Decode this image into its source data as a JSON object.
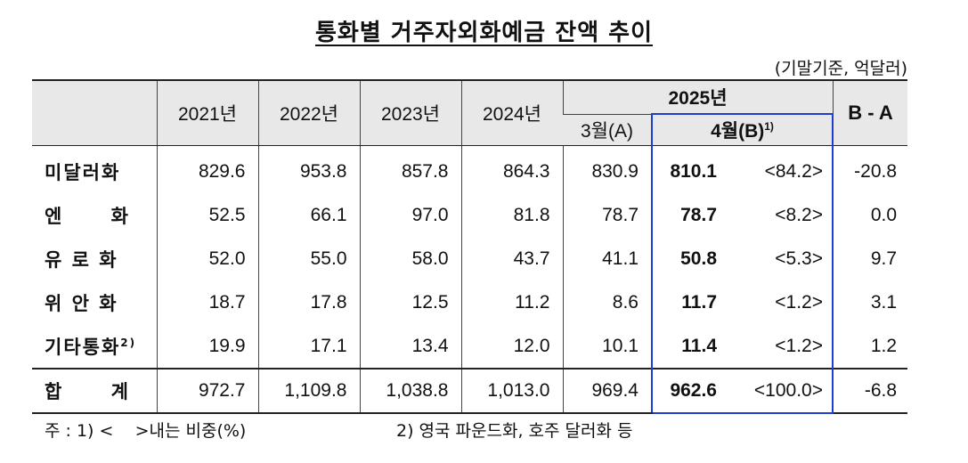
{
  "title": "통화별 거주자외화예금 잔액 추이",
  "unit": "(기말기준, 억달러)",
  "header": {
    "years": [
      "2021년",
      "2022년",
      "2023년",
      "2024년"
    ],
    "year_2025": "2025년",
    "march": "3월(A)",
    "april": "4월(B)",
    "april_sup": "1)",
    "ba": "B - A"
  },
  "rows": [
    {
      "label": "미달러화",
      "values": [
        "829.6",
        "953.8",
        "857.8",
        "864.3",
        "830.9"
      ],
      "b": "810.1",
      "share": "<84.2>",
      "ba": "-20.8"
    },
    {
      "label_chars": [
        "엔",
        "화"
      ],
      "values": [
        "52.5",
        "66.1",
        "97.0",
        "81.8",
        "78.7"
      ],
      "b": "78.7",
      "share": "<8.2>",
      "ba": "0.0"
    },
    {
      "label": "유 로 화",
      "values": [
        "52.0",
        "55.0",
        "58.0",
        "43.7",
        "41.1"
      ],
      "b": "50.8",
      "share": "<5.3>",
      "ba": "9.7"
    },
    {
      "label": "위 안 화",
      "values": [
        "18.7",
        "17.8",
        "12.5",
        "11.2",
        "8.6"
      ],
      "b": "11.7",
      "share": "<1.2>",
      "ba": "3.1"
    },
    {
      "label": "기타통화",
      "label_sup": "2)",
      "values": [
        "19.9",
        "17.1",
        "13.4",
        "12.0",
        "10.1"
      ],
      "b": "11.4",
      "share": "<1.2>",
      "ba": "1.2"
    }
  ],
  "total": {
    "label_chars": [
      "합",
      "계"
    ],
    "values": [
      "972.7",
      "1,109.8",
      "1,038.8",
      "1,013.0",
      "969.4"
    ],
    "b": "962.6",
    "share": "<100.0>",
    "ba": "-6.8"
  },
  "notes": {
    "note1": "주 : 1) <    >내는 비중(%)",
    "note2": "2) 영국 파운드화, 호주 달러화 등"
  }
}
